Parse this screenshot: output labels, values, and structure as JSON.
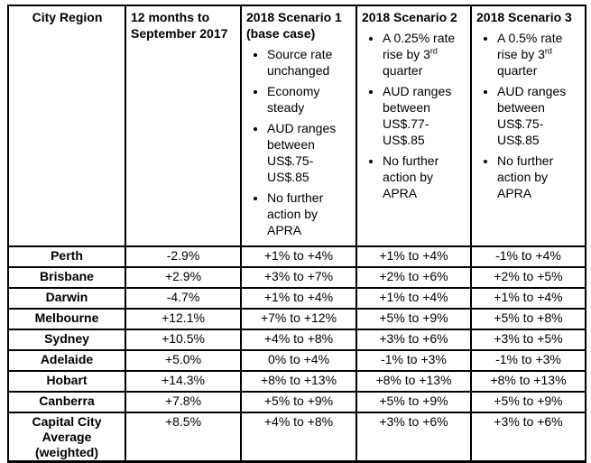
{
  "table": {
    "columns": [
      {
        "id": "city_region",
        "title": "City Region"
      },
      {
        "id": "twelve_months",
        "title": "12 months to September 2017"
      },
      {
        "id": "scenario_1",
        "title": "2018 Scenario 1 (base case)",
        "bullets": [
          [
            {
              "text": "Source rate unchanged",
              "sup": false
            }
          ],
          [
            {
              "text": "Economy steady",
              "sup": false
            }
          ],
          [
            {
              "text": "AUD ranges between US$.75-US$.85",
              "sup": false
            }
          ],
          [
            {
              "text": "No further action by APRA",
              "sup": false
            }
          ]
        ]
      },
      {
        "id": "scenario_2",
        "title": "2018 Scenario 2",
        "bullets": [
          [
            {
              "text": "A 0.25% rate rise by 3",
              "sup": false
            },
            {
              "text": "rd",
              "sup": true
            },
            {
              "text": " quarter",
              "sup": false
            }
          ],
          [
            {
              "text": "AUD ranges between US$.77-US$.85",
              "sup": false
            }
          ],
          [
            {
              "text": "No further action by APRA",
              "sup": false
            }
          ]
        ]
      },
      {
        "id": "scenario_3",
        "title": "2018 Scenario 3",
        "bullets": [
          [
            {
              "text": "A 0.5% rate rise by 3",
              "sup": false
            },
            {
              "text": "rd",
              "sup": true
            },
            {
              "text": " quarter",
              "sup": false
            }
          ],
          [
            {
              "text": "AUD ranges between US$.75-US$.85",
              "sup": false
            }
          ],
          [
            {
              "text": "No further action by APRA",
              "sup": false
            }
          ]
        ]
      }
    ],
    "rows": [
      {
        "city": "Perth",
        "change_12m": "-2.9%",
        "scenario_1": "+1% to +4%",
        "scenario_2": "+1% to +4%",
        "scenario_3": "-1% to +4%"
      },
      {
        "city": "Brisbane",
        "change_12m": "+2.9%",
        "scenario_1": "+3% to +7%",
        "scenario_2": "+2% to +6%",
        "scenario_3": "+2% to +5%"
      },
      {
        "city": "Darwin",
        "change_12m": "-4.7%",
        "scenario_1": "+1% to +4%",
        "scenario_2": "+1% to +4%",
        "scenario_3": "+1% to +4%"
      },
      {
        "city": "Melbourne",
        "change_12m": "+12.1%",
        "scenario_1": "+7% to +12%",
        "scenario_2": "+5% to +9%",
        "scenario_3": "+5% to +8%"
      },
      {
        "city": "Sydney",
        "change_12m": "+10.5%",
        "scenario_1": "+4% to +8%",
        "scenario_2": "+3% to +6%",
        "scenario_3": "+3% to +5%"
      },
      {
        "city": "Adelaide",
        "change_12m": "+5.0%",
        "scenario_1": "0% to +4%",
        "scenario_2": "-1% to +3%",
        "scenario_3": "-1% to +3%"
      },
      {
        "city": "Hobart",
        "change_12m": "+14.3%",
        "scenario_1": "+8% to +13%",
        "scenario_2": "+8% to +13%",
        "scenario_3": "+8% to +13%"
      },
      {
        "city": "Canberra",
        "change_12m": "+7.8%",
        "scenario_1": "+5% to +9%",
        "scenario_2": "+5% to +9%",
        "scenario_3": "+5% to +9%"
      },
      {
        "city": "Capital City Average (weighted)",
        "change_12m": "+8.5%",
        "scenario_1": "+4% to +8%",
        "scenario_2": "+3% to +6%",
        "scenario_3": "+3% to +6%"
      }
    ]
  },
  "chart_data": {
    "type": "table",
    "title": "",
    "columns": [
      "City Region",
      "12 months to September 2017",
      "2018 Scenario 1 (base case): Source rate unchanged; Economy steady; AUD ranges between US$.75-US$.85; No further action by APRA",
      "2018 Scenario 2: A 0.25% rate rise by 3rd quarter; AUD ranges between US$.77-US$.85; No further action by APRA",
      "2018 Scenario 3: A 0.5% rate rise by 3rd quarter; AUD ranges between US$.75-US$.85; No further action by APRA"
    ],
    "rows": [
      [
        "Perth",
        "-2.9%",
        "+1% to +4%",
        "+1% to +4%",
        "-1% to +4%"
      ],
      [
        "Brisbane",
        "+2.9%",
        "+3% to +7%",
        "+2% to +6%",
        "+2% to +5%"
      ],
      [
        "Darwin",
        "-4.7%",
        "+1% to +4%",
        "+1% to +4%",
        "+1% to +4%"
      ],
      [
        "Melbourne",
        "+12.1%",
        "+7% to +12%",
        "+5% to +9%",
        "+5% to +8%"
      ],
      [
        "Sydney",
        "+10.5%",
        "+4% to +8%",
        "+3% to +6%",
        "+3% to +5%"
      ],
      [
        "Adelaide",
        "+5.0%",
        "0% to +4%",
        "-1% to +3%",
        "-1% to +3%"
      ],
      [
        "Hobart",
        "+14.3%",
        "+8% to +13%",
        "+8% to +13%",
        "+8% to +13%"
      ],
      [
        "Canberra",
        "+7.8%",
        "+5% to +9%",
        "+5% to +9%",
        "+5% to +9%"
      ],
      [
        "Capital City Average (weighted)",
        "+8.5%",
        "+4% to +8%",
        "+3% to +6%",
        "+3% to +6%"
      ]
    ]
  },
  "colors": {
    "border": "#000000",
    "text": "#000000",
    "background": "#ffffff"
  }
}
